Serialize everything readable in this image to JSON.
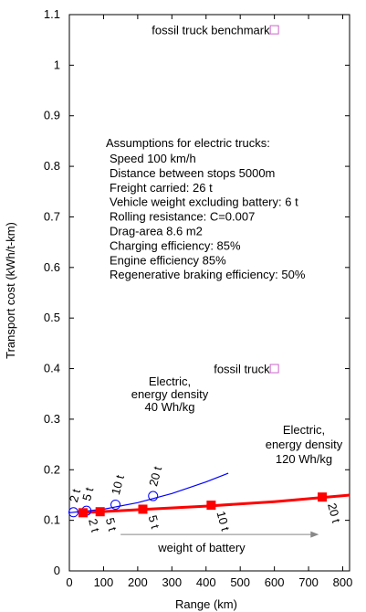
{
  "chart_data": {
    "type": "scatter",
    "xlabel": "Range (km)",
    "ylabel": "Transport cost (kWh/t-km)",
    "xlim": [
      0,
      820
    ],
    "ylim": [
      0,
      1.1
    ],
    "xticks": [
      0,
      100,
      200,
      300,
      400,
      500,
      600,
      700,
      800
    ],
    "yticks": [
      0,
      0.1,
      0.2,
      0.3,
      0.4,
      0.5,
      0.6,
      0.7,
      0.8,
      0.9,
      1,
      1.1
    ],
    "grid": false,
    "series": [
      {
        "name": "Electric, energy density 40 Wh/kg",
        "color": "#0000ff",
        "marker": "open-circle",
        "curve": {
          "x": [
            0,
            100,
            200,
            300,
            400,
            465
          ],
          "y": [
            0.115,
            0.122,
            0.135,
            0.153,
            0.176,
            0.193
          ]
        },
        "points": [
          {
            "x": 12,
            "y": 0.116,
            "label": "2 t"
          },
          {
            "x": 50,
            "y": 0.119,
            "label": "5 t"
          },
          {
            "x": 135,
            "y": 0.131,
            "label": "10 t"
          },
          {
            "x": 245,
            "y": 0.148,
            "label": "20 t"
          }
        ]
      },
      {
        "name": "Electric, energy density 120 Wh/kg",
        "color": "#ff0000",
        "marker": "filled-square",
        "curve": {
          "x": [
            40,
            200,
            400,
            600,
            820
          ],
          "y": [
            0.115,
            0.121,
            0.128,
            0.137,
            0.15
          ]
        },
        "points": [
          {
            "x": 40,
            "y": 0.115,
            "label": "2 t"
          },
          {
            "x": 90,
            "y": 0.117,
            "label": "5 t"
          },
          {
            "x": 215,
            "y": 0.122,
            "label": "5 t"
          },
          {
            "x": 415,
            "y": 0.13,
            "label": "10 t"
          },
          {
            "x": 740,
            "y": 0.146,
            "label": "20 t"
          }
        ]
      },
      {
        "name": "fossil truck",
        "color": "#cc66cc",
        "marker": "open-square",
        "points": [
          {
            "x": 600,
            "y": 0.4
          }
        ]
      },
      {
        "name": "fossil truck benchmark",
        "color": "#cc66cc",
        "marker": "open-square",
        "points": [
          {
            "x": 600,
            "y": 1.07
          }
        ]
      }
    ],
    "annotations": {
      "assumptions_title": "Assumptions for electric trucks:",
      "assumptions": [
        "Speed 100 km/h",
        "Distance between stops 5000m",
        "Freight carried: 26 t",
        "Vehicle weight excluding battery: 6 t",
        "Rolling resistance: C=0.007",
        "Drag-area 8.6 m2",
        "Charging efficiency: 85%",
        "Engine efficiency 85%",
        "Regenerative braking efficiency: 50%"
      ],
      "label_40": [
        "Electric,",
        "energy density",
        "40 Wh/kg"
      ],
      "label_120": [
        "Electric,",
        "energy density",
        "120 Wh/kg"
      ],
      "fossil_truck": "fossil truck",
      "fossil_truck_benchmark": "fossil truck benchmark",
      "arrow_label": "weight of battery",
      "arrow": {
        "x_from": 150,
        "x_to": 730,
        "y": 0.072
      }
    }
  }
}
